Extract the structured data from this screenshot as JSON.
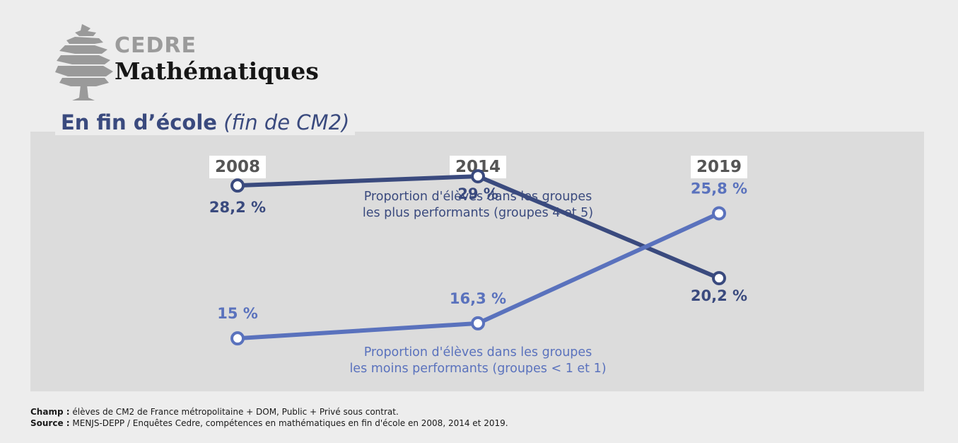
{
  "header": {
    "brand": "CEDRE",
    "subject": "Mathématiques",
    "title_main": "En fin d’école",
    "title_sub": "(fin de CM2)"
  },
  "colors": {
    "series_top": "#3a4a7e",
    "series_bottom": "#5a72bd",
    "panel": "#dcdcdc",
    "background": "#ededed"
  },
  "chart_data": {
    "type": "line",
    "categories": [
      "2008",
      "2014",
      "2019"
    ],
    "ylim": [
      10,
      32
    ],
    "grid": false,
    "series": [
      {
        "name": "Proportion d'élèves dans les groupes les plus performants (groupes 4 et 5)",
        "name_lines": [
          "Proportion d'élèves dans les groupes",
          "les plus performants (groupes 4 et 5)"
        ],
        "values": [
          28.2,
          29,
          20.2
        ],
        "labels": [
          "28,2 %",
          "29 %",
          "20,2 %"
        ],
        "color": "#3a4a7e"
      },
      {
        "name": "Proportion d'élèves dans les groupes les moins performants (groupes < 1 et 1)",
        "name_lines": [
          "Proportion d'élèves dans les groupes",
          "les moins performants (groupes < 1 et 1)"
        ],
        "values": [
          15,
          16.3,
          25.8
        ],
        "labels": [
          "15 %",
          "16,3 %",
          "25,8 %"
        ],
        "color": "#5a72bd"
      }
    ]
  },
  "footer": {
    "champ_label": "Champ :",
    "champ_text": " élèves de CM2 de France métropolitaine + DOM, Public + Privé sous contrat.",
    "source_label": "Source :",
    "source_text": " MENJS-DEPP / Enquêtes Cedre, compétences en mathématiques en fin d'école en 2008, 2014 et 2019."
  }
}
